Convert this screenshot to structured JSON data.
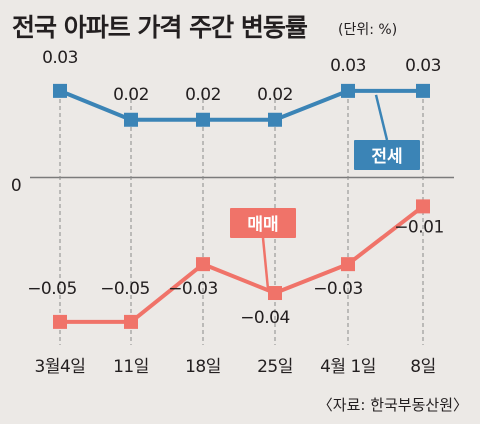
{
  "title": "전국 아파트 가격 주간 변동률",
  "unit": "(단위: %)",
  "source": "〈자료: 한국부동산원〉",
  "zero_label": "0",
  "colors": {
    "background": "#ece9e6",
    "jeonse": "#3b84b6",
    "maemae": "#f07369",
    "text": "#231f20",
    "zero_line": "#7b7b7b"
  },
  "chart_data": {
    "type": "line",
    "categories": [
      "3월4일",
      "11일",
      "18일",
      "25일",
      "4월 1일",
      "8일"
    ],
    "series": [
      {
        "name": "전세",
        "values": [
          0.03,
          0.02,
          0.02,
          0.02,
          0.03,
          0.03
        ],
        "labels": [
          "0.03",
          "0.02",
          "0.02",
          "0.02",
          "0.03",
          "0.03"
        ]
      },
      {
        "name": "매매",
        "values": [
          -0.05,
          -0.05,
          -0.03,
          -0.04,
          -0.03,
          -0.01
        ],
        "labels": [
          "−0.05",
          "−0.05",
          "−0.03",
          "−0.04",
          "−0.03",
          "−0.01"
        ]
      }
    ],
    "ylim": [
      -0.058,
      0.04
    ],
    "grid": false,
    "legend": "inline badges"
  }
}
